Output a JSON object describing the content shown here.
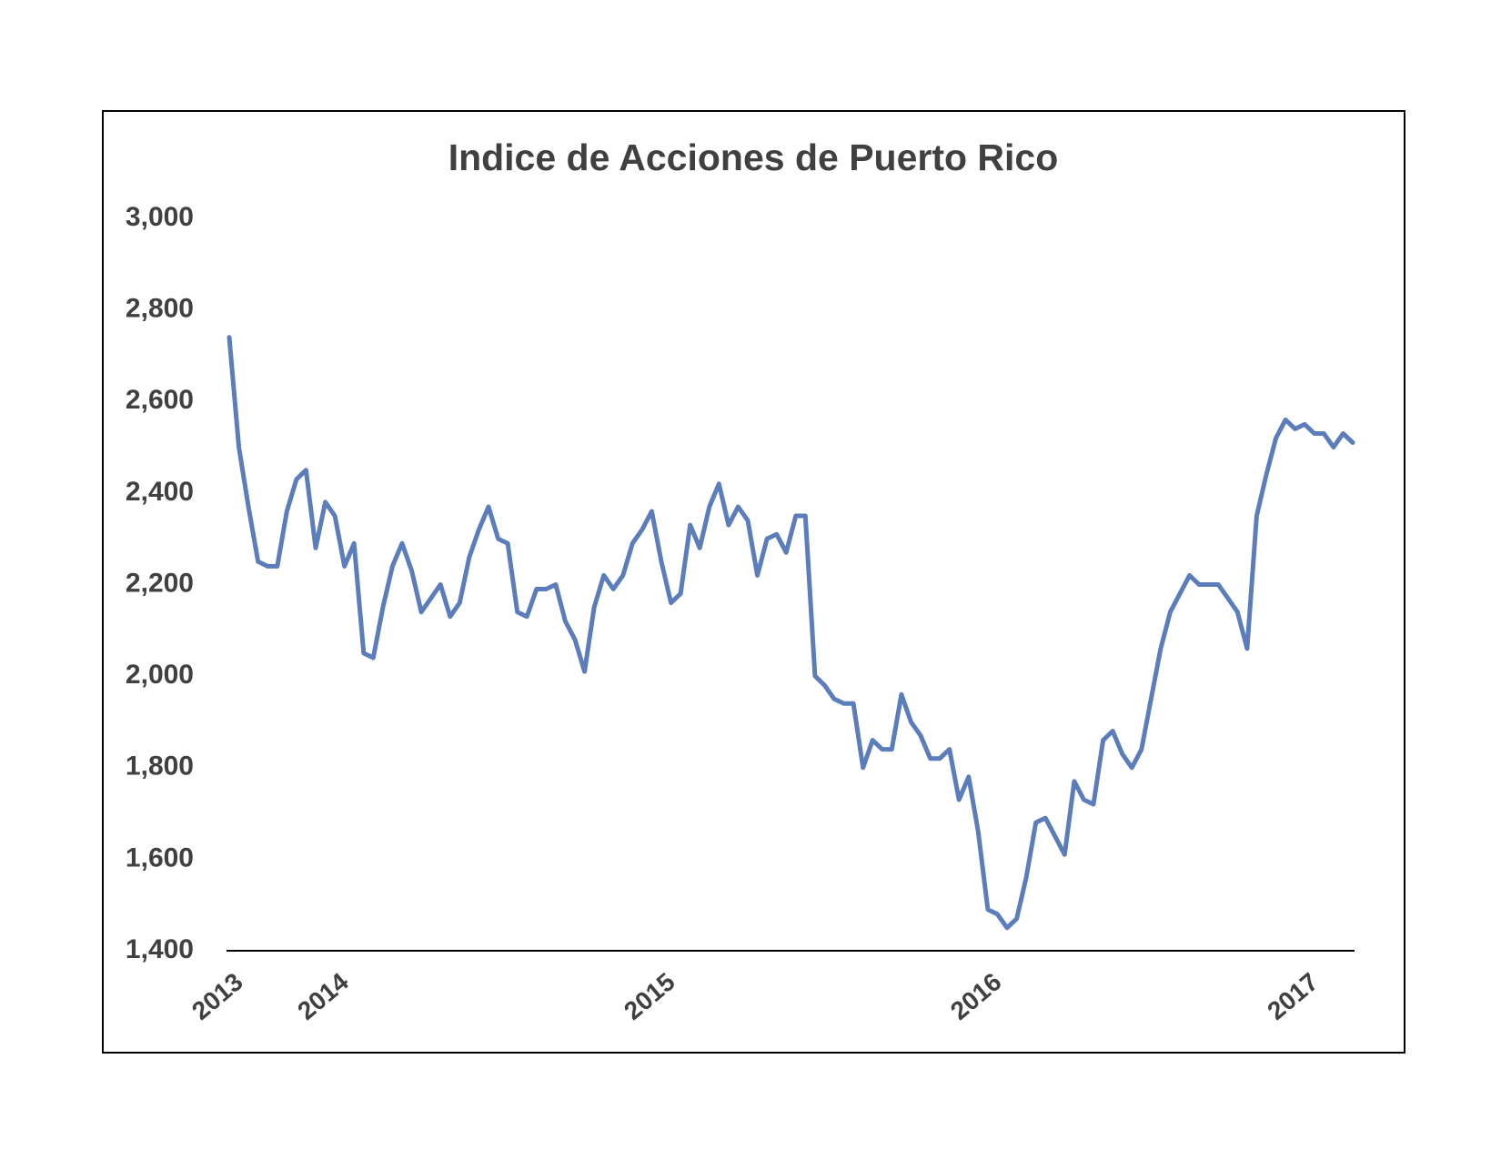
{
  "chart_data": {
    "type": "line",
    "title": "Indice de Acciones de Puerto Rico",
    "categories": [
      "2013",
      null,
      null,
      null,
      null,
      null,
      null,
      null,
      null,
      null,
      null,
      "2014",
      null,
      null,
      null,
      null,
      null,
      null,
      null,
      null,
      null,
      null,
      null,
      null,
      null,
      null,
      null,
      null,
      null,
      null,
      null,
      null,
      null,
      null,
      null,
      null,
      null,
      null,
      null,
      null,
      null,
      null,
      null,
      null,
      null,
      "2015",
      null,
      null,
      null,
      null,
      null,
      null,
      null,
      null,
      null,
      null,
      null,
      null,
      null,
      null,
      null,
      null,
      null,
      null,
      null,
      null,
      null,
      null,
      null,
      null,
      null,
      null,
      null,
      null,
      null,
      null,
      null,
      null,
      null,
      "2016",
      null,
      null,
      null,
      null,
      null,
      null,
      null,
      null,
      null,
      null,
      null,
      null,
      null,
      null,
      null,
      null,
      null,
      null,
      null,
      null,
      null,
      null,
      null,
      null,
      null,
      null,
      null,
      null,
      null,
      null,
      null,
      null,
      "2017",
      null,
      null,
      null,
      null,
      null
    ],
    "series": [
      {
        "color": "#5b7dbb",
        "values": [
          2740,
          2500,
          2370,
          2250,
          2240,
          2240,
          2360,
          2430,
          2450,
          2280,
          2380,
          2350,
          2240,
          2290,
          2050,
          2040,
          2150,
          2240,
          2290,
          2230,
          2140,
          2170,
          2200,
          2130,
          2160,
          2260,
          2320,
          2370,
          2300,
          2290,
          2140,
          2130,
          2190,
          2190,
          2200,
          2120,
          2080,
          2010,
          2150,
          2220,
          2190,
          2220,
          2290,
          2320,
          2360,
          2250,
          2160,
          2180,
          2330,
          2280,
          2370,
          2420,
          2330,
          2370,
          2340,
          2220,
          2300,
          2310,
          2270,
          2350,
          2350,
          2000,
          1980,
          1950,
          1940,
          1940,
          1800,
          1860,
          1840,
          1840,
          1960,
          1900,
          1870,
          1820,
          1820,
          1840,
          1730,
          1780,
          1660,
          1490,
          1480,
          1450,
          1470,
          1560,
          1680,
          1690,
          1650,
          1610,
          1770,
          1730,
          1720,
          1860,
          1880,
          1830,
          1800,
          1840,
          1950,
          2060,
          2140,
          2180,
          2220,
          2200,
          2200,
          2200,
          2170,
          2140,
          2060,
          2350,
          2440,
          2520,
          2560,
          2540,
          2550,
          2530,
          2530,
          2500,
          2530,
          2510
        ]
      }
    ],
    "ylim": [
      1400,
      3000
    ],
    "yticks": [
      {
        "value": 1400,
        "label": "1,400"
      },
      {
        "value": 1600,
        "label": "1,600"
      },
      {
        "value": 1800,
        "label": "1,800"
      },
      {
        "value": 2000,
        "label": "2,000"
      },
      {
        "value": 2200,
        "label": "2,200"
      },
      {
        "value": 2400,
        "label": "2,400"
      },
      {
        "value": 2600,
        "label": "2,600"
      },
      {
        "value": 2800,
        "label": "2,800"
      },
      {
        "value": 3000,
        "label": "3,000"
      }
    ],
    "grid": false
  }
}
